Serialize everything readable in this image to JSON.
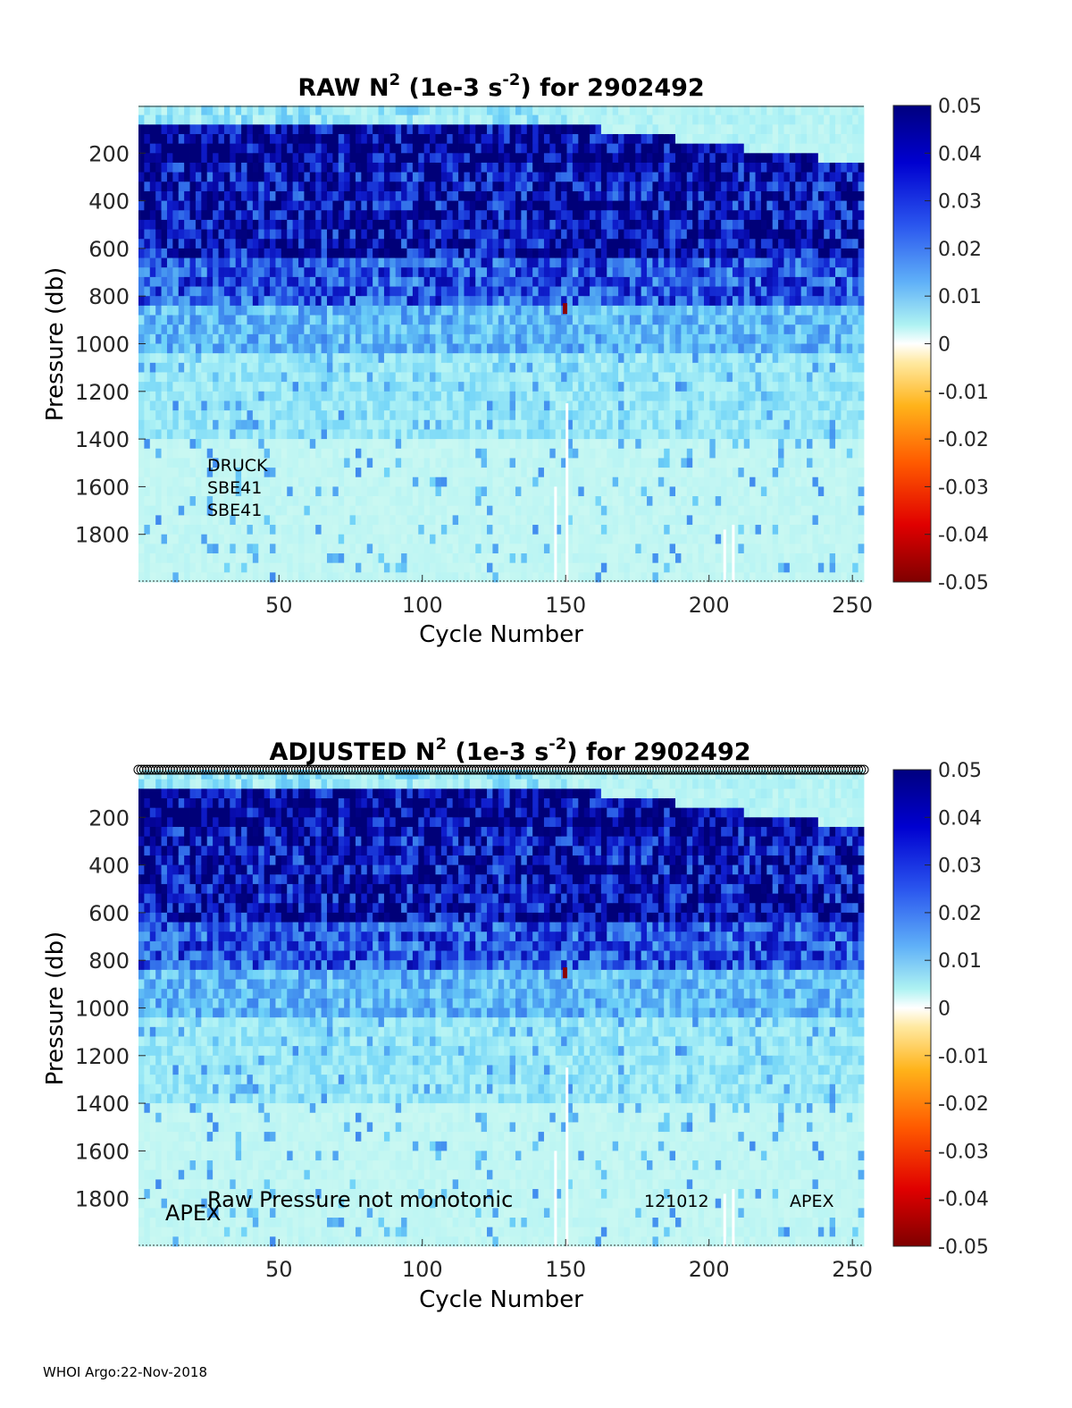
{
  "footer": "WHOI Argo:22-Nov-2018",
  "chart_data": [
    {
      "type": "heatmap",
      "title_parts": {
        "a": "RAW N",
        "sup1": "2",
        "b": " (1e-3 s",
        "sup2": "-2",
        "c": ") for 2902492"
      },
      "xlabel": "Cycle Number",
      "ylabel": "Pressure (db)",
      "xlim": [
        1,
        254
      ],
      "ylim": [
        0,
        2000
      ],
      "y_reversed": true,
      "xticks": [
        50,
        100,
        150,
        200,
        250
      ],
      "yticks": [
        200,
        400,
        600,
        800,
        1000,
        1200,
        1400,
        1600,
        1800
      ],
      "colorbar": {
        "ticks": [
          0.05,
          0.04,
          0.03,
          0.02,
          0.01,
          0,
          -0.01,
          -0.02,
          -0.03,
          -0.04,
          -0.05
        ],
        "clim": [
          -0.05,
          0.05
        ],
        "colormap": "blue-white-red"
      },
      "annotations": [
        "DRUCK",
        "SBE41",
        "SBE41"
      ],
      "profile_markers": false
    },
    {
      "type": "heatmap",
      "title_parts": {
        "a": "ADJUSTED N",
        "sup1": "2",
        "b": " (1e-3 s",
        "sup2": "-2",
        "c": ") for 2902492"
      },
      "xlabel": "Cycle Number",
      "ylabel": "Pressure (db)",
      "xlim": [
        1,
        254
      ],
      "ylim": [
        0,
        2000
      ],
      "y_reversed": true,
      "xticks": [
        50,
        100,
        150,
        200,
        250
      ],
      "yticks": [
        200,
        400,
        600,
        800,
        1000,
        1200,
        1400,
        1600,
        1800
      ],
      "colorbar": {
        "ticks": [
          0.05,
          0.04,
          0.03,
          0.02,
          0.01,
          0,
          -0.01,
          -0.02,
          -0.03,
          -0.04,
          -0.05
        ],
        "clim": [
          -0.05,
          0.05
        ],
        "colormap": "blue-white-red"
      },
      "annotations": [
        "APEX",
        "Raw Pressure not monotonic",
        "121012",
        "APEX"
      ],
      "profile_markers": true
    }
  ]
}
